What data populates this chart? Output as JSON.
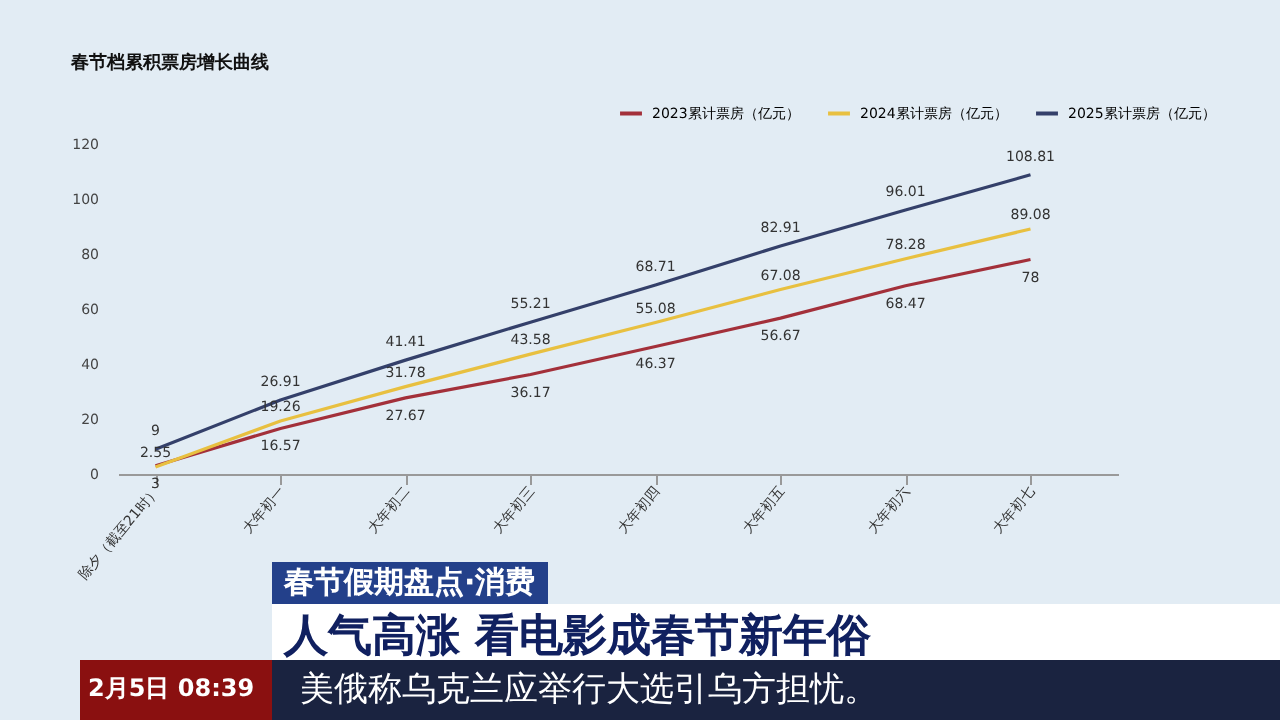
{
  "chart_data": {
    "type": "line",
    "title": "春节档累积票房增长曲线",
    "categories": [
      "除夕（截至21时）",
      "大年初一",
      "大年初二",
      "大年初三",
      "大年初四",
      "大年初五",
      "大年初六",
      "大年初七"
    ],
    "series": [
      {
        "name": "2023累计票房（亿元）",
        "color": "#a3303a",
        "values": [
          3,
          16.57,
          27.67,
          36.17,
          46.37,
          56.67,
          68.47,
          78
        ]
      },
      {
        "name": "2024累计票房（亿元）",
        "color": "#e8c040",
        "values": [
          2.55,
          19.26,
          31.78,
          43.58,
          55.08,
          67.08,
          78.28,
          89.08
        ]
      },
      {
        "name": "2025累计票房（亿元）",
        "color": "#34406a",
        "values": [
          9,
          26.91,
          41.41,
          55.21,
          68.71,
          82.91,
          96.01,
          108.81
        ]
      }
    ],
    "ylim": [
      0,
      120
    ],
    "yticks": [
      0,
      20,
      40,
      60,
      80,
      100,
      120
    ],
    "grid": false,
    "legend": "top right",
    "data_labels": true,
    "marker": "none",
    "line_style": "solid",
    "annotations": [
      "春节假期盘点·消费",
      "人气高涨 看电影成春节新年俗",
      "2月5日 08:39",
      "美俄称乌克兰应举行大选引乌方担忧。"
    ]
  }
}
